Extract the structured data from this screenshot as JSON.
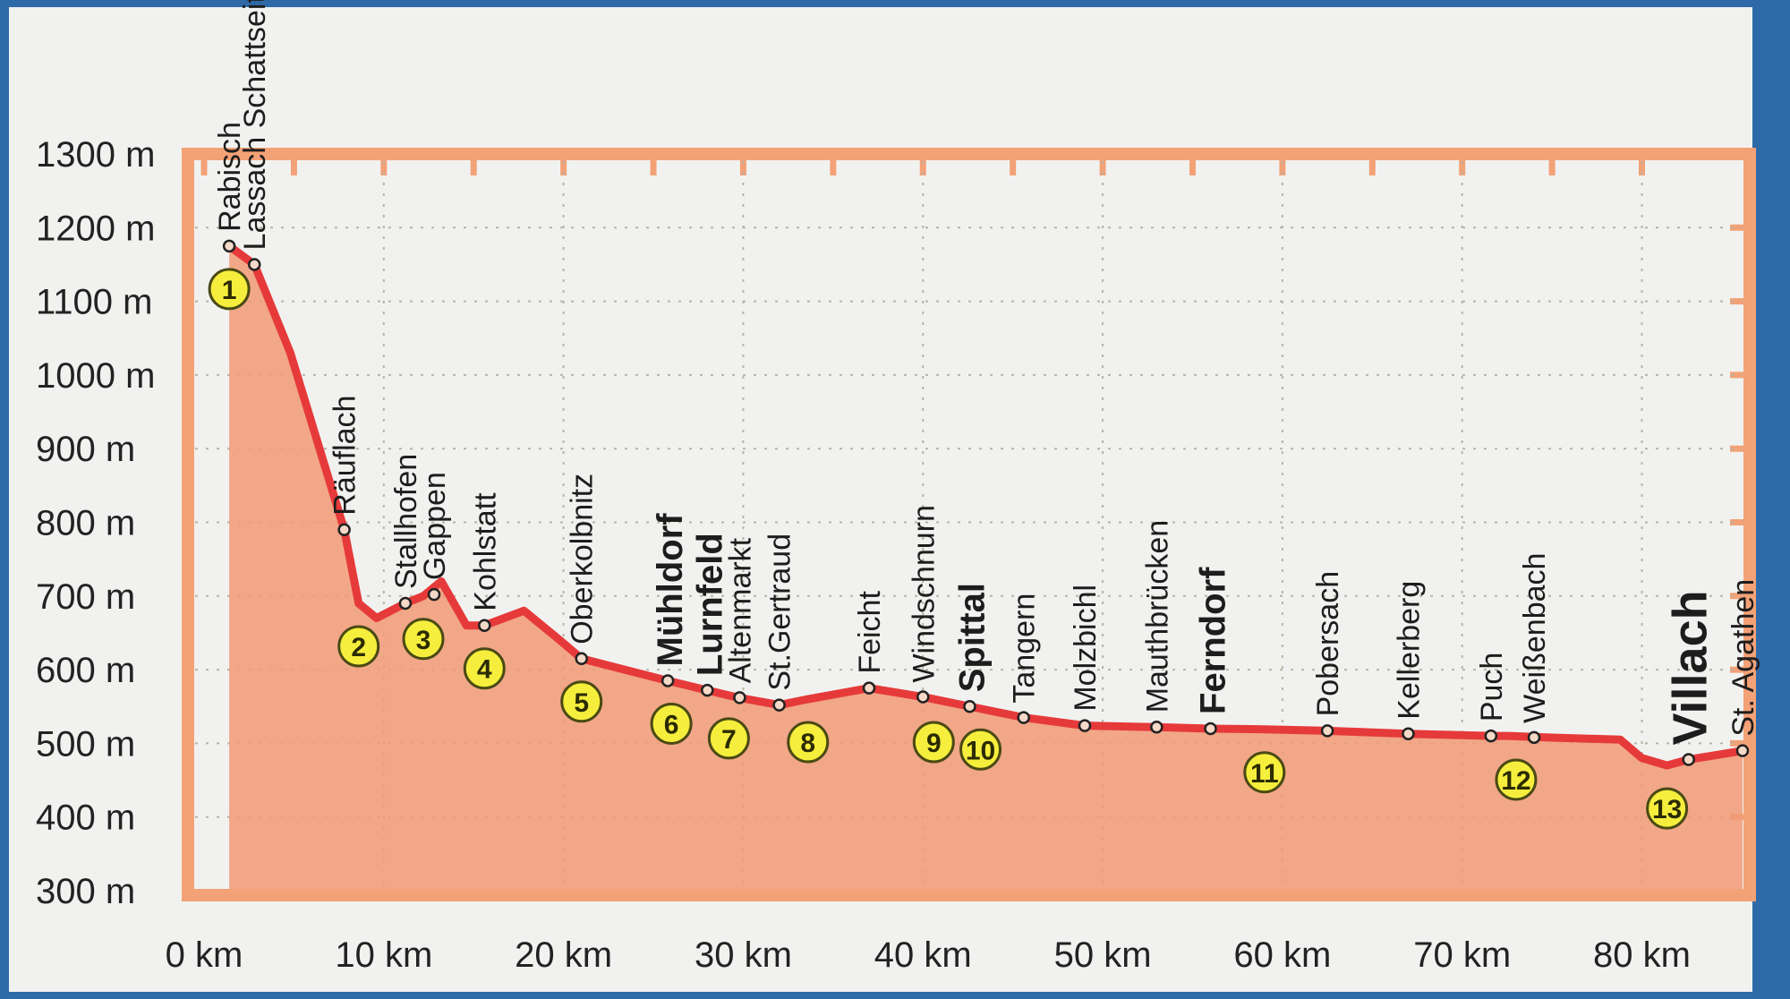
{
  "chart_data": {
    "type": "area",
    "title": "",
    "xlabel": "",
    "ylabel": "",
    "xlim": [
      0,
      86
    ],
    "ylim": [
      300,
      1300
    ],
    "x_ticks": [
      "0 km",
      "10 km",
      "20 km",
      "30 km",
      "40 km",
      "50 km",
      "60 km",
      "70 km",
      "80 km"
    ],
    "y_ticks": [
      "1300 m",
      "1200 m",
      "1100 m",
      "1000 m",
      "900 m",
      "800 m",
      "700 m",
      "600 m",
      "500 m",
      "400 m",
      "300 m"
    ],
    "grid": true,
    "colors": {
      "frame": "#f3a176",
      "fill": "#f19a76",
      "line": "#e63a3a",
      "marker": "#f6ee3c",
      "marker_border": "#4a4a14"
    },
    "profile": [
      {
        "x": 1.4,
        "y": 1175
      },
      {
        "x": 2.8,
        "y": 1150
      },
      {
        "x": 4.8,
        "y": 1030
      },
      {
        "x": 7.8,
        "y": 790
      },
      {
        "x": 8.6,
        "y": 690
      },
      {
        "x": 9.6,
        "y": 670
      },
      {
        "x": 11.2,
        "y": 690
      },
      {
        "x": 12.2,
        "y": 700
      },
      {
        "x": 13.2,
        "y": 720
      },
      {
        "x": 14.6,
        "y": 660
      },
      {
        "x": 15.6,
        "y": 660
      },
      {
        "x": 17.8,
        "y": 680
      },
      {
        "x": 19.8,
        "y": 640
      },
      {
        "x": 21.0,
        "y": 615
      },
      {
        "x": 25.8,
        "y": 585
      },
      {
        "x": 28.0,
        "y": 572
      },
      {
        "x": 29.2,
        "y": 565
      },
      {
        "x": 30.2,
        "y": 560
      },
      {
        "x": 32.0,
        "y": 552
      },
      {
        "x": 33.6,
        "y": 560
      },
      {
        "x": 37.0,
        "y": 575
      },
      {
        "x": 40.0,
        "y": 563
      },
      {
        "x": 41.0,
        "y": 558
      },
      {
        "x": 42.6,
        "y": 550
      },
      {
        "x": 45.6,
        "y": 535
      },
      {
        "x": 49.0,
        "y": 524
      },
      {
        "x": 53.0,
        "y": 522
      },
      {
        "x": 56.0,
        "y": 520
      },
      {
        "x": 59.0,
        "y": 519
      },
      {
        "x": 62.5,
        "y": 517
      },
      {
        "x": 67.0,
        "y": 513
      },
      {
        "x": 71.6,
        "y": 510
      },
      {
        "x": 72.6,
        "y": 510
      },
      {
        "x": 74.8,
        "y": 508
      },
      {
        "x": 78.8,
        "y": 505
      },
      {
        "x": 80.0,
        "y": 480
      },
      {
        "x": 81.4,
        "y": 470
      },
      {
        "x": 82.6,
        "y": 478
      },
      {
        "x": 85.6,
        "y": 490
      }
    ],
    "places": [
      {
        "name": "Rabisch",
        "x": 1.4,
        "y": 1175,
        "weight": "normal"
      },
      {
        "name": "Lassach Schattseite",
        "x": 2.8,
        "y": 1150,
        "weight": "normal"
      },
      {
        "name": "Räuflach",
        "x": 7.8,
        "y": 790,
        "weight": "normal"
      },
      {
        "name": "Stallhofen",
        "x": 11.2,
        "y": 690,
        "weight": "normal"
      },
      {
        "name": "Gappen",
        "x": 12.8,
        "y": 702,
        "weight": "normal"
      },
      {
        "name": "Kohlstatt",
        "x": 15.6,
        "y": 660,
        "weight": "normal"
      },
      {
        "name": "Oberkolbnitz",
        "x": 21.0,
        "y": 615,
        "weight": "normal"
      },
      {
        "name": "Mühldorf",
        "x": 25.8,
        "y": 585,
        "weight": "bold"
      },
      {
        "name": "Lurnfeld",
        "x": 28.0,
        "y": 572,
        "weight": "bold"
      },
      {
        "name": "Altenmarkt",
        "x": 29.8,
        "y": 562,
        "weight": "normal"
      },
      {
        "name": "St.Gertraud",
        "x": 32.0,
        "y": 552,
        "weight": "normal"
      },
      {
        "name": "Feicht",
        "x": 37.0,
        "y": 575,
        "weight": "normal"
      },
      {
        "name": "Windschnurn",
        "x": 40.0,
        "y": 563,
        "weight": "normal"
      },
      {
        "name": "Spittal",
        "x": 42.6,
        "y": 550,
        "weight": "bold"
      },
      {
        "name": "Tangern",
        "x": 45.6,
        "y": 535,
        "weight": "normal"
      },
      {
        "name": "Molzbichl",
        "x": 49.0,
        "y": 524,
        "weight": "normal"
      },
      {
        "name": "Mauthbrücken",
        "x": 53.0,
        "y": 522,
        "weight": "normal"
      },
      {
        "name": "Ferndorf",
        "x": 56.0,
        "y": 520,
        "weight": "bold"
      },
      {
        "name": "Pobersach",
        "x": 62.5,
        "y": 517,
        "weight": "normal"
      },
      {
        "name": "Kellerberg",
        "x": 67.0,
        "y": 513,
        "weight": "normal"
      },
      {
        "name": "Puch",
        "x": 71.6,
        "y": 510,
        "weight": "normal"
      },
      {
        "name": "Weißenbach",
        "x": 74.0,
        "y": 508,
        "weight": "normal"
      },
      {
        "name": "Villach",
        "x": 82.6,
        "y": 478,
        "weight": "big"
      },
      {
        "name": "St. Agathen",
        "x": 85.6,
        "y": 490,
        "weight": "normal"
      }
    ],
    "stages": [
      {
        "label": "1",
        "x": 1.4,
        "y": 1175
      },
      {
        "label": "2",
        "x": 8.6,
        "y": 690
      },
      {
        "label": "3",
        "x": 12.2,
        "y": 700
      },
      {
        "label": "4",
        "x": 15.6,
        "y": 660
      },
      {
        "label": "5",
        "x": 21.0,
        "y": 615
      },
      {
        "label": "6",
        "x": 26.0,
        "y": 585
      },
      {
        "label": "7",
        "x": 29.2,
        "y": 565
      },
      {
        "label": "8",
        "x": 33.6,
        "y": 560
      },
      {
        "label": "9",
        "x": 40.6,
        "y": 560
      },
      {
        "label": "10",
        "x": 43.2,
        "y": 550
      },
      {
        "label": "11",
        "x": 59.0,
        "y": 519
      },
      {
        "label": "12",
        "x": 73.0,
        "y": 509
      },
      {
        "label": "13",
        "x": 81.4,
        "y": 470
      }
    ]
  }
}
